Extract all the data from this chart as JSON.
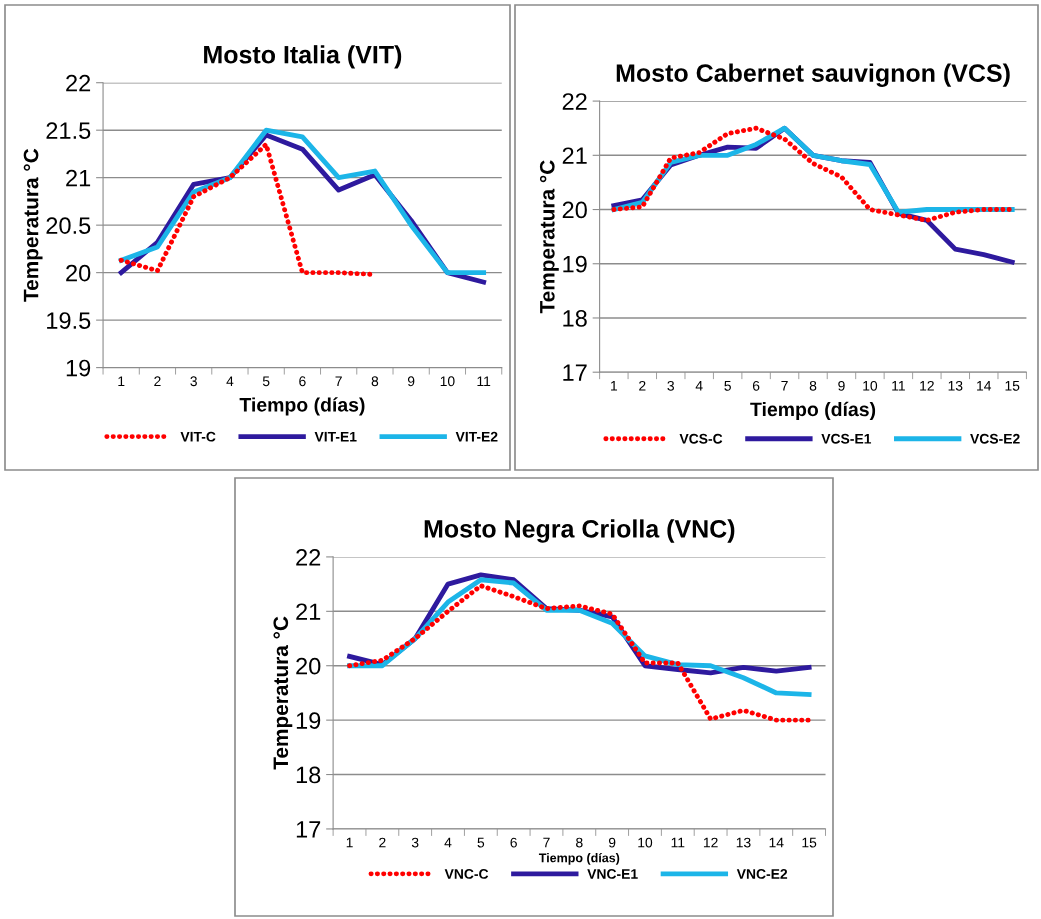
{
  "chart_data": [
    {
      "type": "line",
      "title": "Mosto Italia (VIT)",
      "xlabel": "Tiempo (días)",
      "ylabel": "Temperatura °C",
      "categories": [
        "1",
        "2",
        "3",
        "4",
        "5",
        "6",
        "7",
        "8",
        "9",
        "10",
        "11"
      ],
      "ylim": [
        19,
        22
      ],
      "yticks": [
        19,
        19.5,
        20,
        20.5,
        21,
        21.5,
        22
      ],
      "grid": "y",
      "legend": "bottom",
      "series": [
        {
          "name": "VIT-C",
          "color": "#ff0000",
          "line_style": "dotted",
          "values": [
            20.13,
            20.02,
            20.8,
            21.0,
            21.35,
            20.0,
            20.0,
            19.98,
            null,
            null,
            null
          ]
        },
        {
          "name": "VIT-E1",
          "color": "#2e1a9e",
          "line_style": "solid",
          "values": [
            20.0,
            20.32,
            20.93,
            21.0,
            21.45,
            21.3,
            20.87,
            21.03,
            20.55,
            20.0,
            19.9
          ]
        },
        {
          "name": "VIT-E2",
          "color": "#1cb5e8",
          "line_style": "solid",
          "values": [
            20.13,
            20.27,
            20.85,
            21.0,
            21.5,
            21.43,
            21.0,
            21.07,
            20.5,
            20.0,
            20.0
          ]
        }
      ]
    },
    {
      "type": "line",
      "title": "Mosto Cabernet sauvignon (VCS)",
      "xlabel": "Tiempo (días)",
      "ylabel": "Temperatura °C",
      "categories": [
        "1",
        "2",
        "3",
        "4",
        "5",
        "6",
        "7",
        "8",
        "9",
        "10",
        "11",
        "12",
        "13",
        "14",
        "15"
      ],
      "ylim": [
        17,
        22
      ],
      "yticks": [
        17,
        18,
        19,
        20,
        21,
        22
      ],
      "grid": "y",
      "legend": "bottom",
      "series": [
        {
          "name": "VCS-C",
          "color": "#ff0000",
          "line_style": "dotted",
          "values": [
            20.0,
            20.05,
            20.95,
            21.05,
            21.4,
            21.5,
            21.3,
            20.85,
            20.6,
            20.0,
            19.9,
            19.8,
            19.95,
            20.0,
            20.0
          ]
        },
        {
          "name": "VCS-E1",
          "color": "#2e1a9e",
          "line_style": "solid",
          "values": [
            20.07,
            20.18,
            20.82,
            21.0,
            21.15,
            21.13,
            21.5,
            21.0,
            20.9,
            20.87,
            19.93,
            19.8,
            19.27,
            19.17,
            19.03
          ]
        },
        {
          "name": "VCS-E2",
          "color": "#1cb5e8",
          "line_style": "solid",
          "values": [
            20.0,
            20.13,
            20.87,
            21.0,
            21.0,
            21.2,
            21.5,
            21.0,
            20.9,
            20.83,
            19.95,
            20.0,
            20.0,
            20.0,
            20.0
          ]
        }
      ]
    },
    {
      "type": "line",
      "title": "Mosto Negra Criolla (VNC)",
      "xlabel": "Tiempo (días)",
      "ylabel": "Temperatura °C",
      "categories": [
        "1",
        "2",
        "3",
        "4",
        "5",
        "6",
        "7",
        "8",
        "9",
        "10",
        "11",
        "12",
        "13",
        "14",
        "15"
      ],
      "ylim": [
        17,
        22
      ],
      "yticks": [
        17,
        18,
        19,
        20,
        21,
        22
      ],
      "grid": "y",
      "legend": "bottom",
      "series": [
        {
          "name": "VNC-C",
          "color": "#ff0000",
          "line_style": "dotted",
          "values": [
            20.0,
            20.1,
            20.5,
            21.0,
            21.47,
            21.27,
            21.05,
            21.1,
            20.95,
            20.05,
            20.05,
            19.02,
            19.18,
            19.0,
            19.0
          ]
        },
        {
          "name": "VNC-E1",
          "color": "#2e1a9e",
          "line_style": "solid",
          "values": [
            20.17,
            20.02,
            20.5,
            21.5,
            21.67,
            21.58,
            21.05,
            21.02,
            20.9,
            20.0,
            19.93,
            19.87,
            19.97,
            19.9,
            19.97
          ]
        },
        {
          "name": "VNC-E2",
          "color": "#1cb5e8",
          "line_style": "solid",
          "values": [
            20.0,
            20.0,
            20.5,
            21.17,
            21.58,
            21.52,
            21.02,
            21.02,
            20.78,
            20.18,
            20.02,
            20.0,
            19.78,
            19.5,
            19.47
          ]
        }
      ]
    }
  ]
}
